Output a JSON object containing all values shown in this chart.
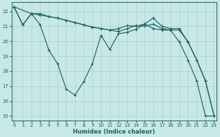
{
  "xlabel": "Humidex (Indice chaleur)",
  "background_color": "#c8e8e8",
  "grid_color": "#a8cece",
  "line_color": "#1a6060",
  "xlim": [
    -0.3,
    23.3
  ],
  "ylim": [
    14.7,
    22.6
  ],
  "yticks": [
    15,
    16,
    17,
    18,
    19,
    20,
    21,
    22
  ],
  "xticks": [
    0,
    1,
    2,
    3,
    4,
    5,
    6,
    7,
    8,
    9,
    10,
    11,
    12,
    13,
    14,
    15,
    16,
    17,
    18,
    19,
    20,
    21,
    22,
    23
  ],
  "line1_x": [
    0,
    1,
    2,
    3,
    4,
    5,
    6,
    7,
    8,
    9,
    10,
    11,
    12,
    13,
    14,
    15,
    16,
    17,
    18,
    19,
    20,
    21,
    22,
    23
  ],
  "line1_y": [
    22.3,
    21.1,
    21.85,
    21.1,
    19.4,
    18.5,
    16.8,
    16.4,
    17.3,
    18.5,
    20.4,
    19.45,
    20.5,
    20.6,
    20.8,
    21.15,
    21.55,
    21.0,
    20.85,
    20.85,
    19.95,
    18.75,
    17.35,
    15.0
  ],
  "line2_x": [
    0,
    2,
    3,
    4,
    5,
    6,
    7,
    8,
    9,
    10,
    11,
    12,
    13,
    14,
    15,
    16,
    17,
    18,
    19,
    20,
    21,
    22,
    23
  ],
  "line2_y": [
    22.3,
    21.85,
    21.75,
    21.65,
    21.55,
    21.4,
    21.25,
    21.1,
    20.95,
    20.85,
    20.75,
    20.65,
    20.85,
    21.05,
    21.0,
    21.15,
    20.85,
    20.75,
    20.75,
    19.95,
    18.75,
    17.35,
    15.0
  ],
  "line3_x": [
    0,
    1,
    2,
    3,
    4,
    5,
    6,
    7,
    8,
    9,
    10,
    11,
    12,
    13,
    14,
    15,
    16,
    17,
    18,
    19,
    20,
    21,
    22,
    23
  ],
  "line3_y": [
    22.3,
    21.1,
    21.85,
    21.85,
    21.65,
    21.55,
    21.4,
    21.25,
    21.1,
    20.95,
    20.85,
    20.75,
    20.85,
    21.05,
    21.0,
    21.15,
    20.85,
    20.75,
    20.75,
    19.95,
    18.75,
    17.35,
    15.0,
    15.0
  ]
}
